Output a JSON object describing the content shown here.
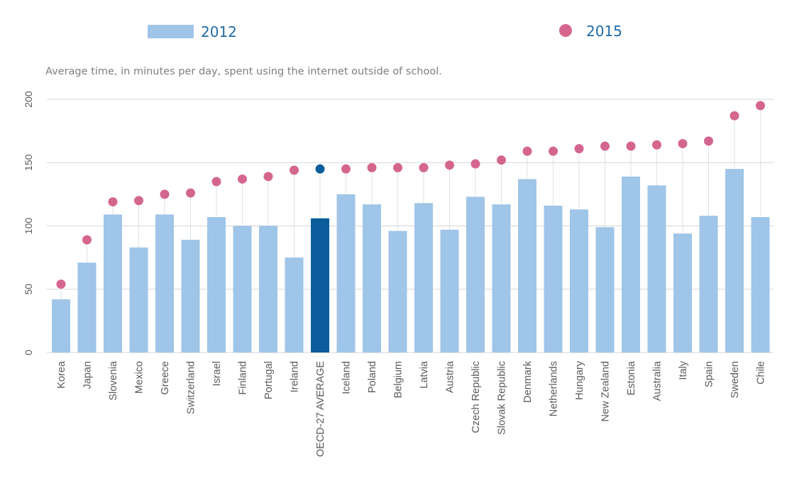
{
  "chart_data": {
    "type": "bar",
    "subtitle": "Average time, in minutes per day, spent using the internet outside of school.",
    "categories": [
      "Korea",
      "Japan",
      "Slovenia",
      "Mexico",
      "Greece",
      "Switzerland",
      "Israel",
      "Finland",
      "Portugal",
      "Ireland",
      "OECD-27 AVERAGE",
      "Iceland",
      "Poland",
      "Belgium",
      "Latvia",
      "Austria",
      "Czech Republic",
      "Slovak Republic",
      "Denmark",
      "Netherlands",
      "Hungary",
      "New Zealand",
      "Estonia",
      "Australia",
      "Italy",
      "Spain",
      "Sweden",
      "Chile"
    ],
    "series": [
      {
        "name": "2012",
        "marker": "bar",
        "values": [
          42,
          71,
          109,
          83,
          109,
          89,
          107,
          100,
          100,
          75,
          106,
          125,
          117,
          96,
          118,
          97,
          123,
          117,
          137,
          116,
          113,
          99,
          139,
          132,
          94,
          108,
          145,
          107
        ]
      },
      {
        "name": "2015",
        "marker": "dot",
        "values": [
          54,
          89,
          119,
          120,
          125,
          126,
          135,
          137,
          139,
          144,
          145,
          145,
          146,
          146,
          146,
          148,
          149,
          152,
          159,
          159,
          161,
          163,
          163,
          164,
          165,
          167,
          187,
          195
        ]
      }
    ],
    "highlight_category": "OECD-27 AVERAGE",
    "ylim": [
      0,
      200
    ],
    "yticks": [
      0,
      50,
      100,
      150,
      200
    ],
    "grid": true,
    "legend_position": "top",
    "colors": {
      "bar": "#9fc5e8",
      "bar_highlight": "#0b5d9c",
      "dot": "#d4668e",
      "dot_highlight": "#0b5d9c",
      "legend_text": "#1f6aa5",
      "grid": "#d5d5d5",
      "stem": "#dde2ea",
      "subtitle": "#7f7f7f",
      "tick": "#5a5a5a"
    }
  }
}
